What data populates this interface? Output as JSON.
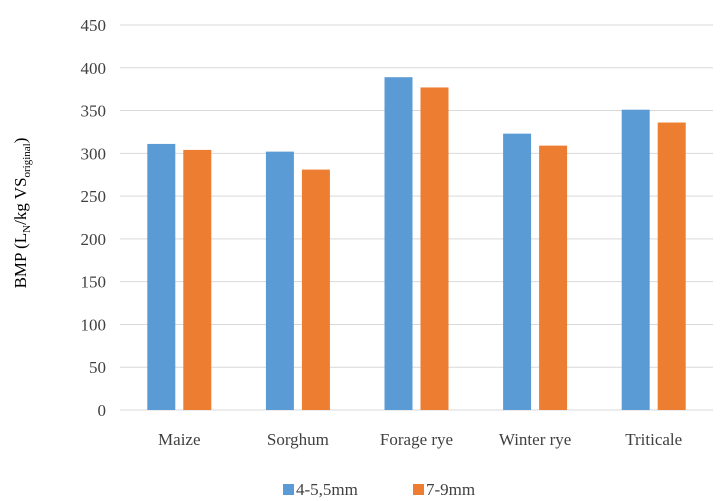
{
  "chart_data": {
    "type": "bar",
    "categories": [
      "Maize",
      "Sorghum",
      "Forage rye",
      "Winter rye",
      "Triticale"
    ],
    "series": [
      {
        "name": "4-5,5mm",
        "values": [
          311,
          302,
          389,
          323,
          351
        ],
        "color": "#5B9BD5"
      },
      {
        "name": "7-9mm",
        "values": [
          304,
          281,
          377,
          309,
          336
        ],
        "color": "#ED7D31"
      }
    ],
    "ylabel": {
      "main": "BMP (L",
      "sub1": "N",
      "mid": "/kg VS",
      "sub2": "original",
      "end": ")"
    },
    "ylim": [
      0,
      450
    ],
    "ytick_step": 50,
    "grid": true,
    "gridline_color": "#D9D9D9",
    "legend_position": "bottom"
  }
}
